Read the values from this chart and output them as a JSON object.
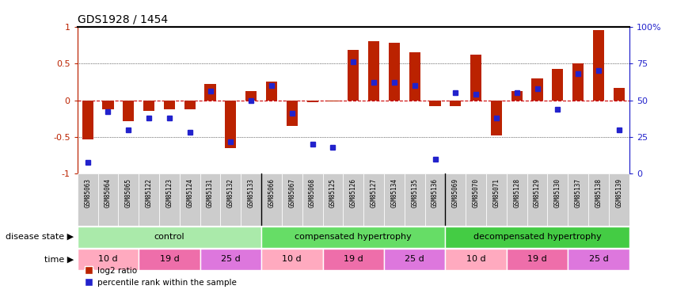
{
  "title": "GDS1928 / 1454",
  "samples": [
    "GSM85063",
    "GSM85064",
    "GSM85065",
    "GSM85122",
    "GSM85123",
    "GSM85124",
    "GSM85131",
    "GSM85132",
    "GSM85133",
    "GSM85066",
    "GSM85067",
    "GSM85068",
    "GSM85125",
    "GSM85126",
    "GSM85127",
    "GSM85134",
    "GSM85135",
    "GSM85136",
    "GSM85069",
    "GSM85070",
    "GSM85071",
    "GSM85128",
    "GSM85129",
    "GSM85130",
    "GSM85137",
    "GSM85138",
    "GSM85139"
  ],
  "log2_ratio": [
    -0.53,
    -0.12,
    -0.28,
    -0.15,
    -0.12,
    -0.12,
    0.22,
    -0.65,
    0.12,
    0.25,
    -0.35,
    -0.03,
    -0.02,
    0.68,
    0.8,
    0.78,
    0.65,
    -0.08,
    -0.08,
    0.62,
    -0.48,
    0.12,
    0.3,
    0.43,
    0.5,
    0.95,
    0.17
  ],
  "percentile": [
    0.08,
    0.42,
    0.3,
    0.38,
    0.38,
    0.28,
    0.56,
    0.22,
    0.5,
    0.6,
    0.41,
    0.2,
    0.18,
    0.76,
    0.62,
    0.62,
    0.6,
    0.1,
    0.55,
    0.54,
    0.38,
    0.55,
    0.58,
    0.44,
    0.68,
    0.7,
    0.3
  ],
  "disease_state_groups": [
    {
      "label": "control",
      "start": 0,
      "end": 9,
      "color": "#AAEAAA"
    },
    {
      "label": "compensated hypertrophy",
      "start": 9,
      "end": 18,
      "color": "#66DD66"
    },
    {
      "label": "decompensated hypertrophy",
      "start": 18,
      "end": 27,
      "color": "#44CC44"
    }
  ],
  "time_groups": [
    {
      "label": "10 d",
      "start": 0,
      "end": 3,
      "color": "#FFAABF"
    },
    {
      "label": "19 d",
      "start": 3,
      "end": 6,
      "color": "#EE6EAA"
    },
    {
      "label": "25 d",
      "start": 6,
      "end": 9,
      "color": "#DD77DD"
    },
    {
      "label": "10 d",
      "start": 9,
      "end": 12,
      "color": "#FFAABF"
    },
    {
      "label": "19 d",
      "start": 12,
      "end": 15,
      "color": "#EE6EAA"
    },
    {
      "label": "25 d",
      "start": 15,
      "end": 18,
      "color": "#DD77DD"
    },
    {
      "label": "10 d",
      "start": 18,
      "end": 21,
      "color": "#FFAABF"
    },
    {
      "label": "19 d",
      "start": 21,
      "end": 24,
      "color": "#EE6EAA"
    },
    {
      "label": "25 d",
      "start": 24,
      "end": 27,
      "color": "#DD77DD"
    }
  ],
  "bar_color": "#BB2200",
  "dot_color": "#2222CC",
  "zero_line_color": "#CC0000",
  "ylim": [
    -1,
    1
  ],
  "yticks": [
    -1,
    -0.5,
    0,
    0.5,
    1
  ],
  "ytick_labels": [
    "-1",
    "-0.5",
    "0",
    "0.5",
    "1"
  ],
  "right_ytick_labels": [
    "0",
    "25",
    "50",
    "75",
    "100%"
  ],
  "disease_state_label": "disease state",
  "time_label": "time",
  "sample_bg_color": "#CCCCCC",
  "separator_color": "#888888"
}
